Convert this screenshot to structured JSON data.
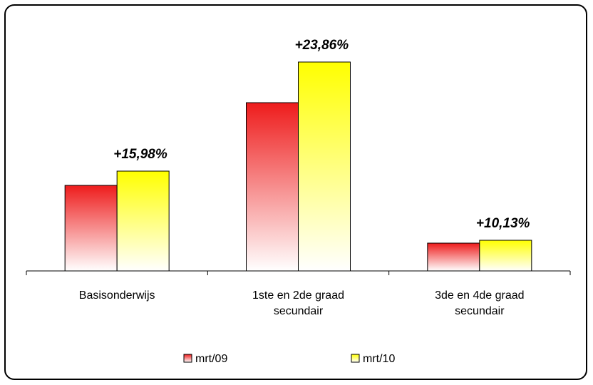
{
  "chart_data": {
    "type": "bar",
    "categories": [
      [
        "Basisonderwijs"
      ],
      [
        "1ste en 2de graad",
        "secundair"
      ],
      [
        "3de en 4de graad",
        "secundair"
      ]
    ],
    "series": [
      {
        "name": "mrt/09",
        "values": [
          120,
          236,
          39
        ]
      },
      {
        "name": "mrt/10",
        "values": [
          140,
          293,
          43
        ]
      }
    ],
    "data_labels": [
      "+15,98%",
      "+23,86%",
      "+10,13%"
    ],
    "ylim": [
      0,
      310
    ],
    "grid": false,
    "legend": "bottom",
    "colors": {
      "mrt/09": {
        "top": "#ee1c1c",
        "bottom": "#ffffff"
      },
      "mrt/10": {
        "top": "#ffff00",
        "bottom": "#ffffff"
      }
    }
  }
}
